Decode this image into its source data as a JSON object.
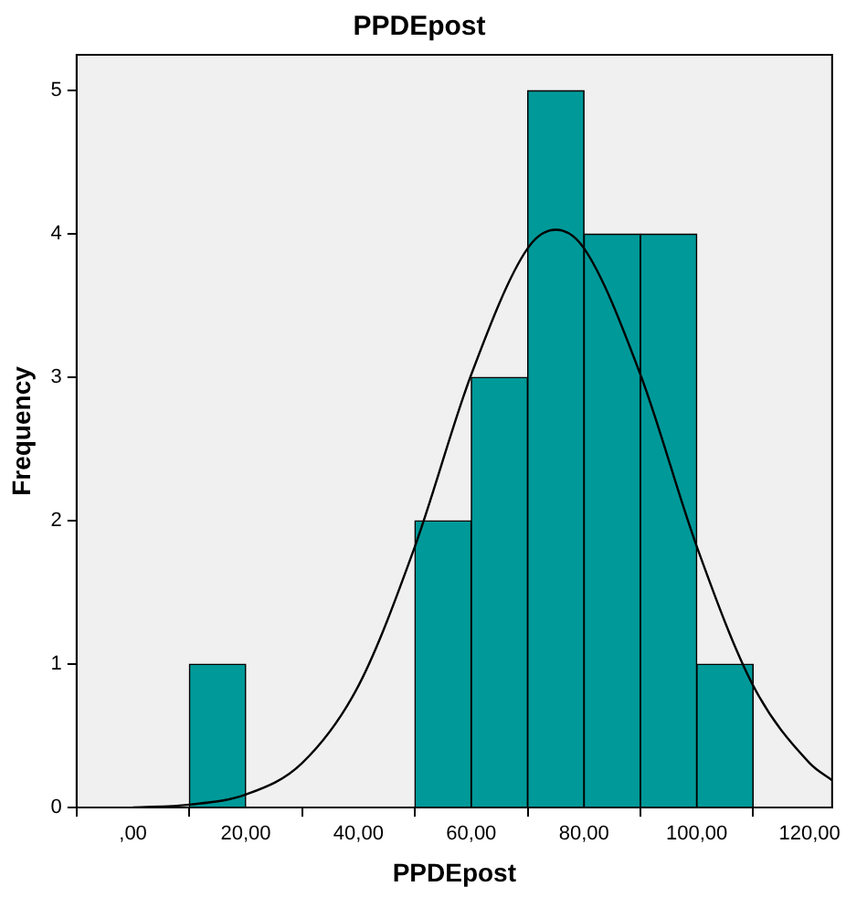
{
  "chart_data": {
    "type": "histogram",
    "title": "PPDEpost",
    "xlabel": "PPDEpost",
    "ylabel": "Frequency",
    "xlim": [
      -10,
      124
    ],
    "xticks": [
      {
        "value": 0,
        "label": ",00"
      },
      {
        "value": 20,
        "label": "20,00"
      },
      {
        "value": 40,
        "label": "40,00"
      },
      {
        "value": 60,
        "label": "60,00"
      },
      {
        "value": 80,
        "label": "80,00"
      },
      {
        "value": 100,
        "label": "100,00"
      },
      {
        "value": 120,
        "label": "120,00"
      }
    ],
    "ylim": [
      0,
      5.25
    ],
    "yticks": [
      0,
      1,
      2,
      3,
      4,
      5
    ],
    "grid": false,
    "legend": false,
    "series": [
      {
        "color": "#009999",
        "bins": [
          10,
          20,
          30,
          40,
          50,
          60,
          70,
          80,
          90,
          100,
          110
        ],
        "values": [
          1,
          0,
          0,
          0,
          2,
          3,
          5,
          4,
          4,
          1
        ]
      },
      {
        "type": "line",
        "color": "#000000",
        "marker": "none",
        "x": [
          0,
          10,
          20,
          30,
          40,
          50,
          60,
          70,
          75,
          80,
          90,
          100,
          110,
          120,
          124
        ],
        "values": [
          0,
          0.02,
          0.09,
          0.31,
          0.85,
          1.82,
          3.02,
          3.9,
          4.03,
          3.9,
          3.02,
          1.82,
          0.85,
          0.31,
          0.19
        ]
      }
    ]
  }
}
